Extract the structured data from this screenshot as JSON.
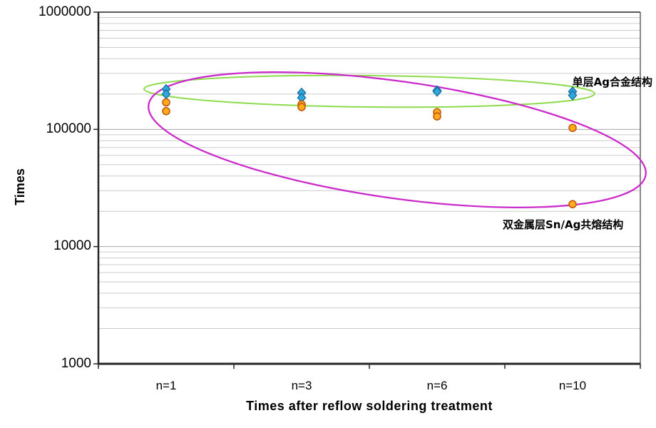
{
  "chart_data": {
    "type": "scatter",
    "title": "",
    "xlabel": "Times after reflow soldering treatment",
    "ylabel": "Times",
    "y_scale": "log",
    "ylim": [
      1000,
      1000000
    ],
    "y_ticks": [
      1000000,
      100000,
      10000,
      1000
    ],
    "y_tick_labels": [
      "1000000",
      "100000",
      "10000",
      "1000"
    ],
    "categories": [
      "n=1",
      "n=3",
      "n=6",
      "n=10"
    ],
    "grid": "horizontal log minor gridlines on",
    "legend_position": "none (text annotations inside plot)",
    "series": [
      {
        "name": "单层Ag合金结构",
        "marker": "diamond",
        "fill": "#31a9d6",
        "stroke": "#1b6fa8",
        "values": [
          [
            220000,
            200000
          ],
          [
            205000,
            186000
          ],
          [
            215000,
            210000
          ],
          [
            210000,
            195000
          ]
        ]
      },
      {
        "name": "双金属层Sn/Ag共熔结构",
        "marker": "circle",
        "fill": "#ffab1a",
        "stroke": "#c05a12",
        "values": [
          [
            170000,
            143000
          ],
          [
            163000,
            155000
          ],
          [
            140000,
            129000
          ],
          [
            103000,
            23000
          ]
        ]
      }
    ],
    "annotations": {
      "ellipses": [
        {
          "group": "ag-alloy-group",
          "color": "#8edb4e",
          "cx": 518,
          "cy": 128,
          "rx": 316,
          "ry": 22,
          "rotation": 0.6,
          "stroke_width": 2
        },
        {
          "group": "sn-ag-group",
          "color": "#cb2bcb",
          "cx": 557,
          "cy": 196,
          "rx": 352,
          "ry": 82,
          "rotation": 8,
          "stroke_width": 2.3
        }
      ]
    },
    "colors": {
      "minor_gridline": "#cbcbcb",
      "major_gridline": "#a6a6a6",
      "axis": "#262626",
      "plot_top_border": "#595959",
      "plot_right_border": "#3c3c3c"
    }
  }
}
